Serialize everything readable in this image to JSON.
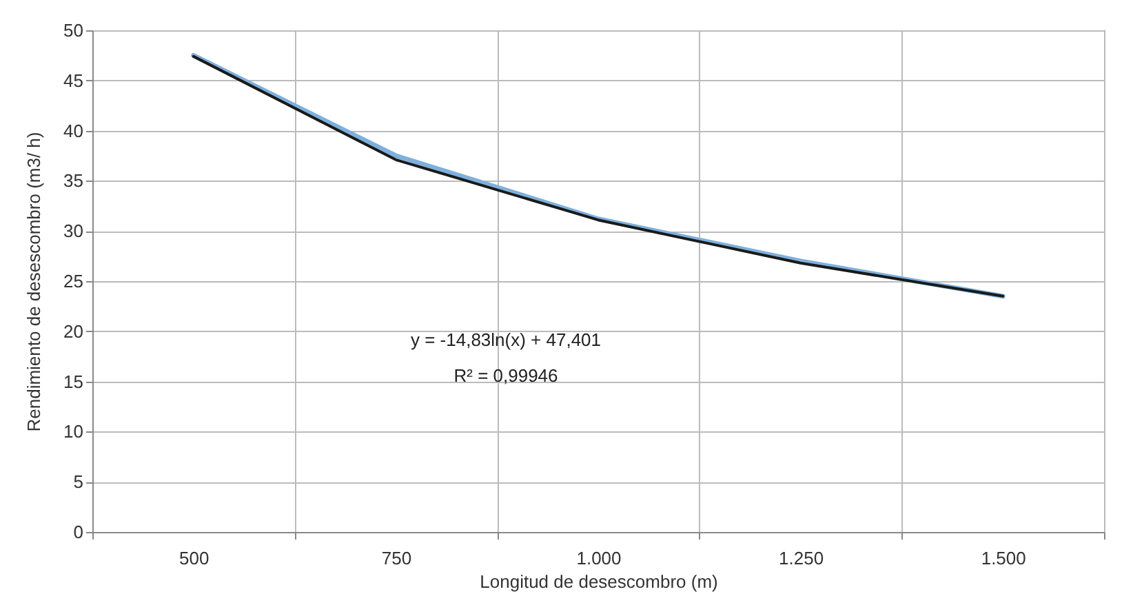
{
  "chart_data": {
    "type": "line",
    "xlabel": "Longitud de desescombro (m)",
    "ylabel": "Rendimiento de desescombro (m3/ h)",
    "categories": [
      "500",
      "750",
      "1.000",
      "1.250",
      "1.500"
    ],
    "series": [
      {
        "color": "#7eb0dc",
        "values": [
          47.5,
          37.5,
          31.2,
          27.0,
          23.5
        ]
      },
      {
        "type": "line",
        "color": "#1a1a1a",
        "values": [
          47.4,
          37.1,
          31.1,
          26.8,
          23.5
        ]
      }
    ],
    "ylim": [
      0,
      50
    ],
    "yticks": [
      0,
      5,
      10,
      15,
      20,
      25,
      30,
      35,
      40,
      45,
      50
    ],
    "grid": true,
    "annotations": [
      "y = -14,83ln(x) + 47,401",
      "R² = 0,99946"
    ]
  }
}
